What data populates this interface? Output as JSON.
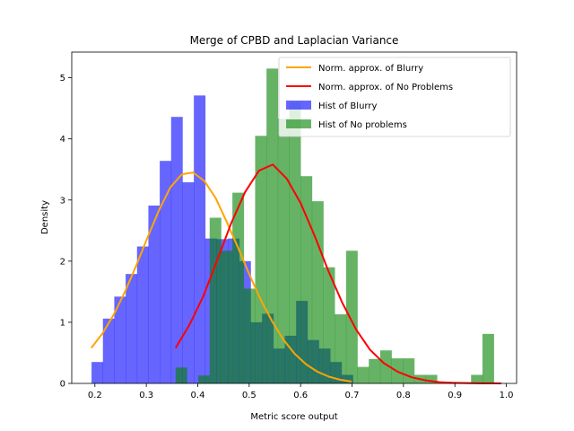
{
  "chart_data": {
    "type": "bar",
    "title": "Merge of CPBD and Laplacian Variance",
    "xlabel": "Metric score output",
    "ylabel": "Density",
    "xlim": [
      0.155,
      1.02
    ],
    "ylim": [
      0,
      5.42
    ],
    "xticks": [
      "0.2",
      "0.3",
      "0.4",
      "0.5",
      "0.6",
      "0.7",
      "0.8",
      "0.9",
      "1.0"
    ],
    "yticks": [
      "0",
      "1",
      "2",
      "3",
      "4",
      "5"
    ],
    "grid": false,
    "legend_position": "top-right",
    "colors": {
      "blurry_hist": "#0000ff",
      "no_problems_hist": "#008000",
      "blurry_norm": "#ffa500",
      "no_problems_norm": "#ff0000"
    },
    "histograms": [
      {
        "name": "Hist of Blurry",
        "bin_width": 0.0221,
        "bins": [
          [
            0.1935,
            0.35
          ],
          [
            0.2156,
            1.06
          ],
          [
            0.2377,
            1.42
          ],
          [
            0.2598,
            1.79
          ],
          [
            0.2819,
            2.24
          ],
          [
            0.304,
            2.91
          ],
          [
            0.3261,
            3.64
          ],
          [
            0.3482,
            4.36
          ],
          [
            0.3703,
            3.29
          ],
          [
            0.3924,
            4.71
          ],
          [
            0.4145,
            2.37
          ],
          [
            0.4366,
            2.36
          ],
          [
            0.4587,
            2.37
          ],
          [
            0.4808,
            2.0
          ],
          [
            0.5029,
            1.0
          ],
          [
            0.525,
            1.14
          ],
          [
            0.5471,
            0.57
          ],
          [
            0.5692,
            0.78
          ],
          [
            0.5913,
            1.35
          ],
          [
            0.6134,
            0.71
          ],
          [
            0.6355,
            0.57
          ],
          [
            0.6576,
            0.35
          ],
          [
            0.6797,
            0.14
          ]
        ]
      },
      {
        "name": "Hist of No problems",
        "bin_width": 0.0221,
        "bins": [
          [
            0.3569,
            0.26
          ],
          [
            0.379,
            0.0
          ],
          [
            0.4011,
            0.13
          ],
          [
            0.4232,
            2.71
          ],
          [
            0.4453,
            2.17
          ],
          [
            0.4674,
            3.12
          ],
          [
            0.4895,
            1.55
          ],
          [
            0.5116,
            4.05
          ],
          [
            0.5337,
            5.15
          ],
          [
            0.5558,
            4.33
          ],
          [
            0.5779,
            4.6
          ],
          [
            0.6,
            3.39
          ],
          [
            0.6221,
            2.98
          ],
          [
            0.6442,
            1.9
          ],
          [
            0.6663,
            1.13
          ],
          [
            0.6884,
            2.17
          ],
          [
            0.7105,
            0.27
          ],
          [
            0.7326,
            0.4
          ],
          [
            0.7547,
            0.54
          ],
          [
            0.7768,
            0.41
          ],
          [
            0.7989,
            0.41
          ],
          [
            0.821,
            0.14
          ],
          [
            0.8431,
            0.14
          ],
          [
            0.8652,
            0.0
          ],
          [
            0.8873,
            0.0
          ],
          [
            0.9094,
            0.0
          ],
          [
            0.9315,
            0.14
          ],
          [
            0.9536,
            0.81
          ]
        ]
      }
    ],
    "lines": [
      {
        "name": "Norm. approx. of Blurry",
        "x": [
          0.193,
          0.215,
          0.237,
          0.259,
          0.281,
          0.303,
          0.325,
          0.347,
          0.369,
          0.391,
          0.413,
          0.435,
          0.457,
          0.479,
          0.501,
          0.523,
          0.545,
          0.567,
          0.589,
          0.611,
          0.633,
          0.655,
          0.677,
          0.699
        ],
        "y": [
          0.58,
          0.82,
          1.13,
          1.51,
          1.94,
          2.4,
          2.84,
          3.21,
          3.42,
          3.45,
          3.31,
          3.03,
          2.63,
          2.21,
          1.77,
          1.36,
          1.01,
          0.71,
          0.48,
          0.31,
          0.19,
          0.11,
          0.06,
          0.03
        ]
      },
      {
        "name": "Norm. approx. of No Problems",
        "x": [
          0.357,
          0.384,
          0.411,
          0.438,
          0.465,
          0.492,
          0.519,
          0.546,
          0.573,
          0.6,
          0.627,
          0.654,
          0.681,
          0.708,
          0.735,
          0.762,
          0.789,
          0.816,
          0.843,
          0.87,
          0.897,
          0.924,
          0.951,
          0.978,
          0.99
        ],
        "y": [
          0.58,
          0.96,
          1.43,
          2.02,
          2.62,
          3.13,
          3.48,
          3.58,
          3.35,
          2.95,
          2.42,
          1.84,
          1.32,
          0.88,
          0.55,
          0.33,
          0.19,
          0.1,
          0.05,
          0.02,
          0.01,
          0.005,
          0.002,
          0.001,
          0.0005
        ]
      }
    ],
    "legend": [
      {
        "label": "Norm. approx. of Blurry",
        "kind": "line",
        "color": "#ffa500"
      },
      {
        "label": "Norm. approx. of No Problems",
        "kind": "line",
        "color": "#ff0000"
      },
      {
        "label": "Hist of Blurry",
        "kind": "patch",
        "color": "#0000ff"
      },
      {
        "label": "Hist of No problems",
        "kind": "patch",
        "color": "#008000"
      }
    ]
  }
}
